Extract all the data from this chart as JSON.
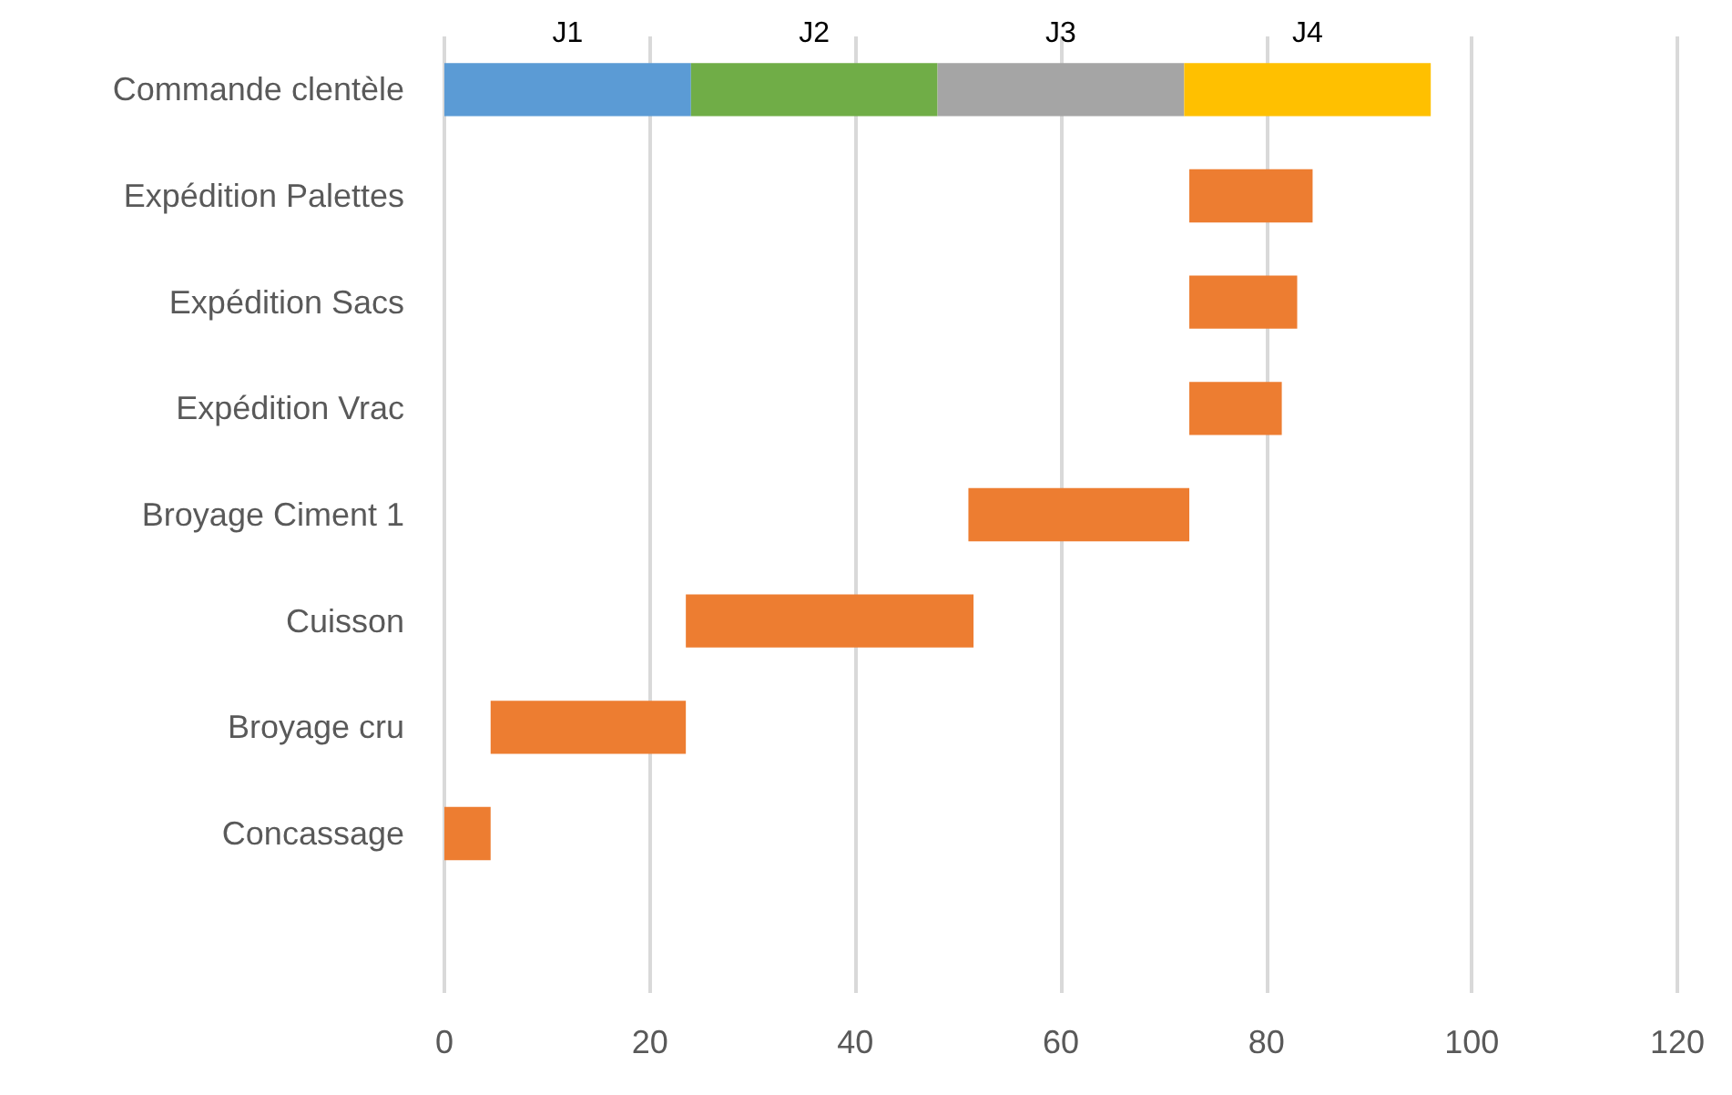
{
  "chart_data": {
    "type": "bar",
    "orientation": "horizontal",
    "categories": [
      "Commande clentèle",
      "Expédition Palettes",
      "Expédition Sacs",
      "Expédition Vrac",
      "Broyage Ciment 1",
      "Cuisson",
      "Broyage cru",
      "Concassage",
      null
    ],
    "series": [
      {
        "name": "J1",
        "color": "#5b9bd5",
        "base": [
          0,
          null,
          null,
          null,
          null,
          null,
          null,
          null,
          null
        ],
        "values": [
          24,
          null,
          null,
          null,
          null,
          null,
          null,
          null,
          null
        ]
      },
      {
        "name": "J2",
        "color": "#70ad47",
        "base": [
          24,
          null,
          null,
          null,
          null,
          null,
          null,
          null,
          null
        ],
        "values": [
          24,
          null,
          null,
          null,
          null,
          null,
          null,
          null,
          null
        ]
      },
      {
        "name": "J3",
        "color": "#a5a5a5",
        "base": [
          48,
          null,
          null,
          null,
          null,
          null,
          null,
          null,
          null
        ],
        "values": [
          24,
          null,
          null,
          null,
          null,
          null,
          null,
          null,
          null
        ]
      },
      {
        "name": "J4",
        "color": "#ffc000",
        "base": [
          72,
          null,
          null,
          null,
          null,
          null,
          null,
          null,
          null
        ],
        "values": [
          24,
          null,
          null,
          null,
          null,
          null,
          null,
          null,
          null
        ]
      },
      {
        "color": "#ed7d31",
        "base": [
          null,
          72.5,
          72.5,
          72.5,
          51,
          23.5,
          4.5,
          0,
          null
        ],
        "values": [
          null,
          12,
          10.5,
          9,
          21.5,
          28,
          19,
          4.5,
          null
        ]
      }
    ],
    "xlim": [
      0,
      120
    ],
    "xticks": [
      0,
      20,
      40,
      60,
      80,
      100,
      120
    ],
    "grid": "x",
    "legend": false
  }
}
